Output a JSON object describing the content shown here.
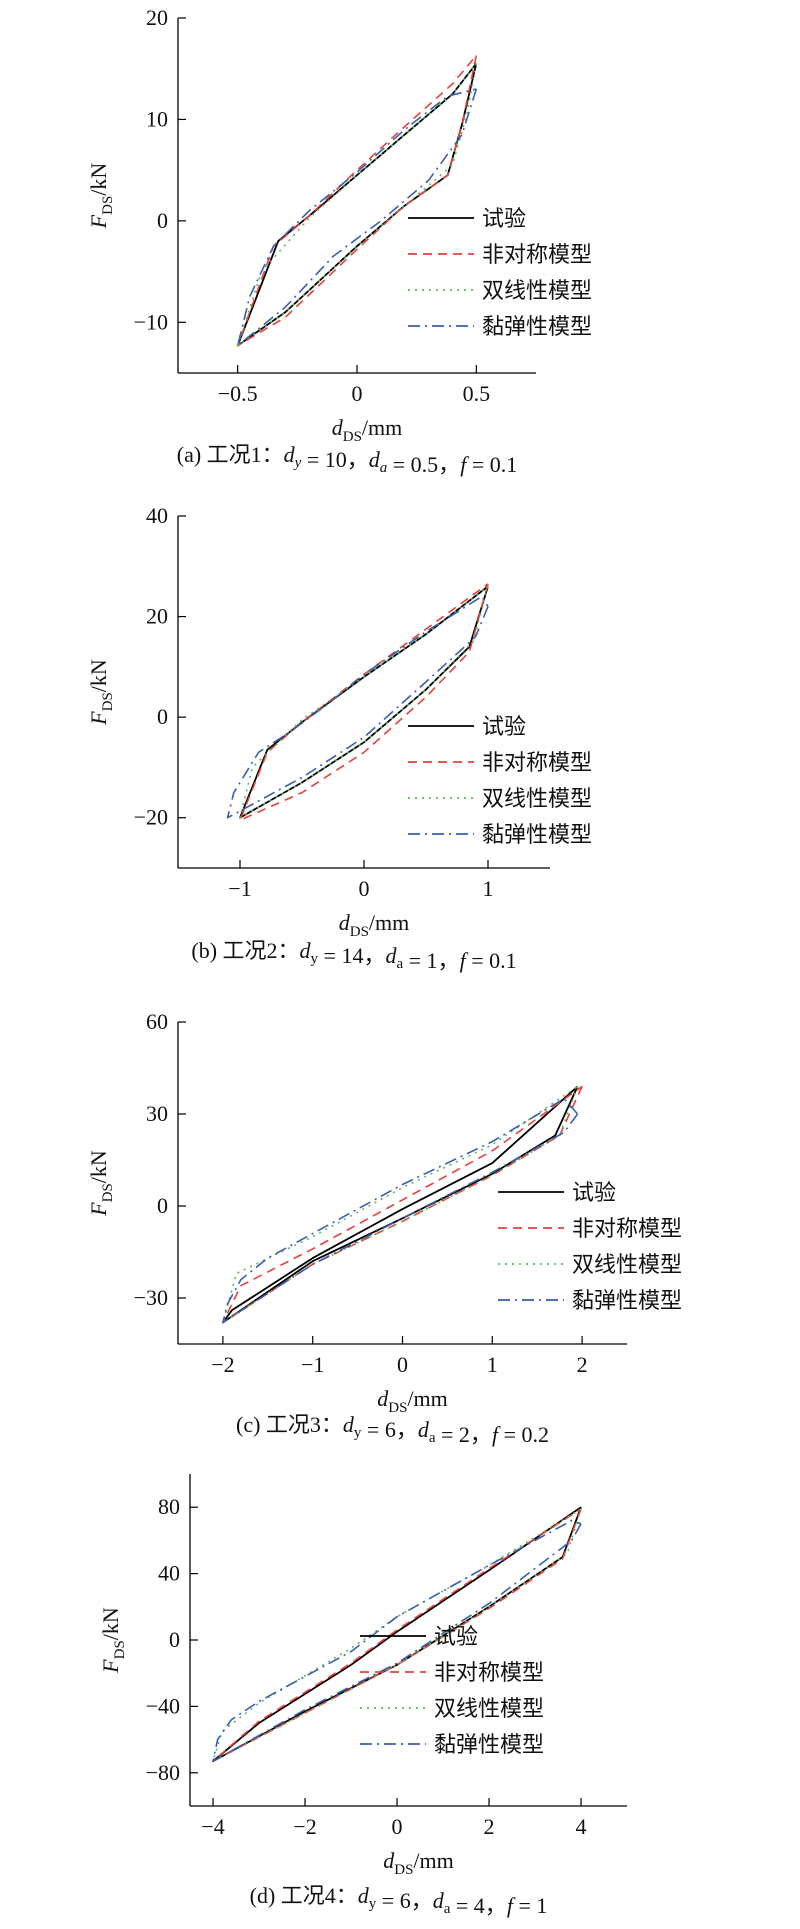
{
  "chart_data": [
    {
      "type": "line",
      "caption": "(a) 工况1：dy = 10，da = 0.5，f = 0.1",
      "xlabel": "dDS/mm",
      "ylabel": "FDS/kN",
      "xlim": [
        -0.75,
        0.75
      ],
      "ylim": [
        -15,
        20
      ],
      "xticks": [
        -0.5,
        0,
        0.5
      ],
      "xtick_labels": [
        "−0.5",
        "0",
        "0.5"
      ],
      "yticks": [
        -10,
        0,
        10,
        20
      ],
      "ytick_labels": [
        "−10",
        "0",
        "10",
        "20"
      ],
      "legend_position": "center-right",
      "series": [
        {
          "name": "试验",
          "style": "solid",
          "color": "#000000",
          "points": [
            [
              0.5,
              15.5
            ],
            [
              0.44,
              9.5
            ],
            [
              0.38,
              4.5
            ],
            [
              0.2,
              1.5
            ],
            [
              0,
              -2.5
            ],
            [
              -0.3,
              -9
            ],
            [
              -0.5,
              -12.3
            ],
            [
              -0.33,
              -2
            ],
            [
              -0.2,
              0.5
            ],
            [
              0,
              4.5
            ],
            [
              0.2,
              8.5
            ],
            [
              0.4,
              12.5
            ],
            [
              0.5,
              15.5
            ]
          ]
        },
        {
          "name": "非对称模型",
          "style": "dashed",
          "color": "#e8413c",
          "points": [
            [
              0.5,
              16.3
            ],
            [
              0.44,
              9.5
            ],
            [
              0.38,
              4.5
            ],
            [
              0.2,
              1.5
            ],
            [
              0,
              -2.8
            ],
            [
              -0.3,
              -9.5
            ],
            [
              -0.5,
              -12.3
            ],
            [
              -0.35,
              -2.5
            ],
            [
              -0.2,
              0.5
            ],
            [
              0,
              5
            ],
            [
              0.2,
              9.3
            ],
            [
              0.4,
              13.5
            ],
            [
              0.5,
              16.3
            ]
          ]
        },
        {
          "name": "双线性模型",
          "style": "dotted",
          "color": "#5cb85c",
          "points": [
            [
              0.5,
              15.5
            ],
            [
              0.46,
              10.5
            ],
            [
              0.4,
              5.5
            ],
            [
              0.2,
              1.5
            ],
            [
              0,
              -2.5
            ],
            [
              -0.3,
              -9
            ],
            [
              -0.5,
              -12.3
            ],
            [
              -0.4,
              -5
            ],
            [
              -0.2,
              0.3
            ],
            [
              0,
              4.5
            ],
            [
              0.2,
              8.5
            ],
            [
              0.4,
              12.5
            ],
            [
              0.5,
              15.5
            ]
          ]
        },
        {
          "name": "黏弹性模型",
          "style": "dashdot",
          "color": "#3a5fad",
          "points": [
            [
              0.5,
              13
            ],
            [
              0.44,
              8.5
            ],
            [
              0.3,
              4
            ],
            [
              0.1,
              0
            ],
            [
              -0.1,
              -3.5
            ],
            [
              -0.3,
              -8.5
            ],
            [
              -0.5,
              -12.3
            ],
            [
              -0.45,
              -7.5
            ],
            [
              -0.35,
              -2.5
            ],
            [
              -0.2,
              1
            ],
            [
              0,
              4.8
            ],
            [
              0.2,
              9
            ],
            [
              0.38,
              12.3
            ],
            [
              0.5,
              13
            ]
          ]
        }
      ]
    },
    {
      "type": "line",
      "caption": "(b) 工况2：dy = 14，da = 1，f = 0.1",
      "xlabel": "dDS/mm",
      "ylabel": "FDS/kN",
      "xlim": [
        -1.5,
        1.5
      ],
      "ylim": [
        -30,
        40
      ],
      "xticks": [
        -1,
        0,
        1
      ],
      "xtick_labels": [
        "−1",
        "0",
        "1"
      ],
      "yticks": [
        -20,
        0,
        20,
        40
      ],
      "ytick_labels": [
        "−20",
        "0",
        "20",
        "40"
      ],
      "legend_position": "bottom-right",
      "series": [
        {
          "name": "试验",
          "style": "solid",
          "color": "#000000",
          "points": [
            [
              1,
              26
            ],
            [
              0.85,
              14
            ],
            [
              0.5,
              5.5
            ],
            [
              0,
              -5
            ],
            [
              -0.5,
              -13
            ],
            [
              -1,
              -20
            ],
            [
              -0.78,
              -6.5
            ],
            [
              -0.5,
              -1
            ],
            [
              0,
              8
            ],
            [
              0.5,
              16.5
            ],
            [
              1,
              26
            ]
          ]
        },
        {
          "name": "非对称模型",
          "style": "dashed",
          "color": "#e8413c",
          "points": [
            [
              1,
              26.5
            ],
            [
              0.85,
              13
            ],
            [
              0.5,
              4
            ],
            [
              0,
              -7
            ],
            [
              -0.5,
              -15
            ],
            [
              -1,
              -20.5
            ],
            [
              -0.78,
              -7
            ],
            [
              -0.5,
              -1
            ],
            [
              0,
              8.5
            ],
            [
              0.5,
              17.5
            ],
            [
              1,
              26.5
            ]
          ]
        },
        {
          "name": "双线性模型",
          "style": "dotted",
          "color": "#5cb85c",
          "points": [
            [
              1,
              26
            ],
            [
              0.88,
              15
            ],
            [
              0.5,
              5.5
            ],
            [
              0,
              -5
            ],
            [
              -0.5,
              -13
            ],
            [
              -1,
              -20
            ],
            [
              -0.9,
              -10
            ],
            [
              -0.5,
              -0.5
            ],
            [
              0,
              8
            ],
            [
              0.5,
              16.5
            ],
            [
              1,
              26
            ]
          ]
        },
        {
          "name": "黏弹性模型",
          "style": "dashdot",
          "color": "#3a5fad",
          "points": [
            [
              1,
              22
            ],
            [
              0.9,
              16
            ],
            [
              0.5,
              7
            ],
            [
              0,
              -4
            ],
            [
              -0.5,
              -12
            ],
            [
              -1.1,
              -20
            ],
            [
              -1.05,
              -15
            ],
            [
              -0.85,
              -7
            ],
            [
              -0.6,
              -3
            ],
            [
              -0.3,
              2.5
            ],
            [
              0,
              8.5
            ],
            [
              0.5,
              17
            ],
            [
              0.95,
              24
            ],
            [
              1,
              22
            ]
          ]
        }
      ]
    },
    {
      "type": "line",
      "caption": "(c) 工况3：dy = 6，da = 2，f = 0.2",
      "xlabel": "dDS/mm",
      "ylabel": "FDS/kN",
      "xlim": [
        -2.5,
        2.5
      ],
      "ylim": [
        -45,
        60
      ],
      "xticks": [
        -2,
        -1,
        0,
        1,
        2
      ],
      "xtick_labels": [
        "−2",
        "−1",
        "0",
        "1",
        "2"
      ],
      "yticks": [
        -30,
        0,
        30,
        60
      ],
      "ytick_labels": [
        "−30",
        "0",
        "30",
        "60"
      ],
      "legend_position": "center-right",
      "series": [
        {
          "name": "试验",
          "style": "solid",
          "color": "#000000",
          "points": [
            [
              1.95,
              39
            ],
            [
              1.7,
              23
            ],
            [
              1,
              10.5
            ],
            [
              0,
              -4
            ],
            [
              -1,
              -18
            ],
            [
              -2,
              -38
            ],
            [
              -1.9,
              -34
            ],
            [
              -1,
              -17
            ],
            [
              0,
              -1
            ],
            [
              1,
              14
            ],
            [
              1.95,
              39
            ]
          ]
        },
        {
          "name": "非对称模型",
          "style": "dashed",
          "color": "#e8413c",
          "points": [
            [
              2,
              39
            ],
            [
              1.75,
              23
            ],
            [
              1,
              10
            ],
            [
              0,
              -5
            ],
            [
              -1,
              -19
            ],
            [
              -2,
              -38
            ],
            [
              -1.8,
              -26
            ],
            [
              -1,
              -14
            ],
            [
              0,
              2
            ],
            [
              1,
              18
            ],
            [
              2,
              39
            ]
          ]
        },
        {
          "name": "双线性模型",
          "style": "dotted",
          "color": "#5cb85c",
          "points": [
            [
              1.95,
              39
            ],
            [
              1.75,
              23
            ],
            [
              1,
              10
            ],
            [
              0,
              -5
            ],
            [
              -1,
              -19
            ],
            [
              -2,
              -38
            ],
            [
              -1.85,
              -22
            ],
            [
              -1,
              -10
            ],
            [
              0,
              6
            ],
            [
              1,
              20
            ],
            [
              1.95,
              39
            ]
          ]
        },
        {
          "name": "黏弹性模型",
          "style": "dashdot",
          "color": "#3a5fad",
          "points": [
            [
              1.95,
              30
            ],
            [
              1.8,
              24
            ],
            [
              1,
              11
            ],
            [
              0,
              -4
            ],
            [
              -1,
              -19
            ],
            [
              -2,
              -38
            ],
            [
              -1.95,
              -32
            ],
            [
              -1.8,
              -24
            ],
            [
              -1.5,
              -17
            ],
            [
              -1,
              -9
            ],
            [
              0,
              7
            ],
            [
              1,
              21
            ],
            [
              1.8,
              35
            ],
            [
              1.95,
              30
            ]
          ]
        }
      ]
    },
    {
      "type": "line",
      "caption": "(d) 工况4：dy = 6，da = 4，f = 1",
      "xlabel": "dDS/mm",
      "ylabel": "FDS/kN",
      "xlim": [
        -4.5,
        5
      ],
      "ylim": [
        -100,
        100
      ],
      "xticks": [
        -4,
        -2,
        0,
        2,
        4
      ],
      "xtick_labels": [
        "−4",
        "−2",
        "0",
        "2",
        "4"
      ],
      "yticks": [
        -80,
        -40,
        0,
        40,
        80
      ],
      "ytick_labels": [
        "−80",
        "−40",
        "0",
        "40",
        "80"
      ],
      "legend_position": "bottom-right",
      "series": [
        {
          "name": "试验",
          "style": "solid",
          "color": "#000000",
          "points": [
            [
              4,
              80
            ],
            [
              3.6,
              50
            ],
            [
              2,
              20
            ],
            [
              0,
              -15
            ],
            [
              -2,
              -43
            ],
            [
              -4,
              -73
            ],
            [
              -3,
              -50
            ],
            [
              -1,
              -15
            ],
            [
              0,
              5
            ],
            [
              2,
              42
            ],
            [
              4,
              80
            ]
          ]
        },
        {
          "name": "非对称模型",
          "style": "dashed",
          "color": "#e8413c",
          "points": [
            [
              4,
              79
            ],
            [
              3.6,
              49
            ],
            [
              2,
              19
            ],
            [
              0,
              -15
            ],
            [
              -2,
              -44
            ],
            [
              -4,
              -73
            ],
            [
              -3,
              -49
            ],
            [
              -1,
              -14
            ],
            [
              0,
              6
            ],
            [
              2,
              43
            ],
            [
              4,
              79
            ]
          ]
        },
        {
          "name": "双线性模型",
          "style": "dotted",
          "color": "#5cb85c",
          "points": [
            [
              4,
              79
            ],
            [
              3.7,
              52
            ],
            [
              2,
              20
            ],
            [
              0,
              -15
            ],
            [
              -2,
              -44
            ],
            [
              -4,
              -73
            ],
            [
              -3.8,
              -55
            ],
            [
              -3,
              -38
            ],
            [
              -1,
              -5
            ],
            [
              0,
              14
            ],
            [
              2,
              45
            ],
            [
              4,
              79
            ]
          ]
        },
        {
          "name": "黏弹性模型",
          "style": "dashdot",
          "color": "#3a5fad",
          "points": [
            [
              4,
              70
            ],
            [
              3.8,
              60
            ],
            [
              2,
              22
            ],
            [
              0,
              -14
            ],
            [
              -2,
              -42
            ],
            [
              -4,
              -73
            ],
            [
              -3.9,
              -60
            ],
            [
              -3.6,
              -48
            ],
            [
              -3,
              -37
            ],
            [
              -1,
              -7
            ],
            [
              0,
              14
            ],
            [
              2,
              45
            ],
            [
              3.8,
              72
            ],
            [
              4,
              70
            ]
          ]
        }
      ]
    }
  ]
}
